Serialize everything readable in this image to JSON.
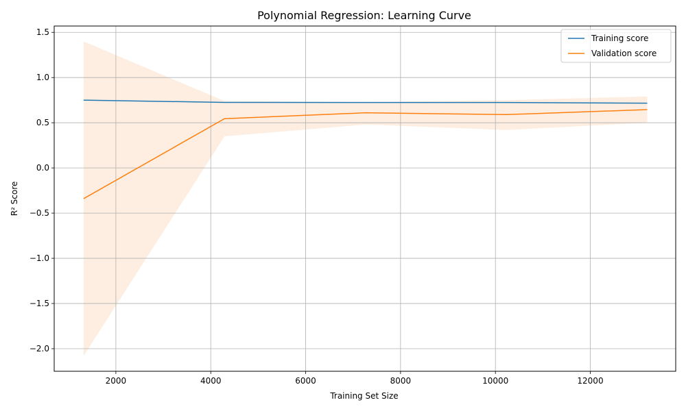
{
  "chart_data": {
    "type": "line",
    "title": "Polynomial Regression: Learning Curve",
    "xlabel": "Training Set Size",
    "ylabel": "R² Score",
    "xlim": [
      700,
      13800
    ],
    "ylim": [
      -2.25,
      1.57
    ],
    "xticks": [
      2000,
      4000,
      6000,
      8000,
      10000,
      12000
    ],
    "xtick_labels": [
      "2000",
      "4000",
      "6000",
      "8000",
      "10000",
      "12000"
    ],
    "yticks": [
      -2.0,
      -1.5,
      -1.0,
      -0.5,
      0.0,
      0.5,
      1.0,
      1.5
    ],
    "ytick_labels": [
      "−2.0",
      "−1.5",
      "−1.0",
      "−0.5",
      "0.0",
      "0.5",
      "1.0",
      "1.5"
    ],
    "grid": true,
    "legend_position": "top-right",
    "x": [
      1320,
      4290,
      7260,
      10230,
      13200
    ],
    "series": [
      {
        "name": "Training score",
        "color": "#1f77b4",
        "values": [
          0.75,
          0.725,
          0.724,
          0.724,
          0.716
        ],
        "band_lower": [
          0.74,
          0.72,
          0.72,
          0.72,
          0.71
        ],
        "band_upper": [
          0.76,
          0.73,
          0.73,
          0.73,
          0.72
        ]
      },
      {
        "name": "Validation score",
        "color": "#ff7f0e",
        "band_color": "#fdeee1",
        "values": [
          -0.34,
          0.545,
          0.61,
          0.59,
          0.645
        ],
        "band_lower": [
          -2.08,
          0.35,
          0.48,
          0.42,
          0.5
        ],
        "band_upper": [
          1.4,
          0.74,
          0.73,
          0.75,
          0.79
        ]
      }
    ]
  }
}
